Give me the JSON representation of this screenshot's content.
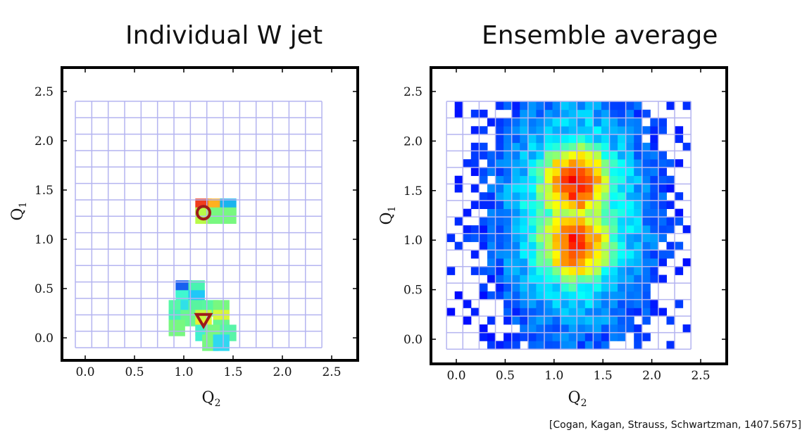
{
  "citation": "[Cogan, Kagan, Strauss, Schwartzman, 1407.5675]",
  "chart_data": [
    {
      "type": "heatmap",
      "title": "Individual W jet",
      "xlabel": "Q",
      "xlabel_sub": "2",
      "ylabel": "Q",
      "ylabel_sub": "1",
      "xlim": [
        -0.25,
        2.75
      ],
      "ylim": [
        -0.25,
        2.75
      ],
      "xticks": [
        "0.0",
        "0.5",
        "1.0",
        "1.5",
        "2.0",
        "2.5"
      ],
      "yticks": [
        "0.0",
        "0.5",
        "1.0",
        "1.5",
        "2.0",
        "2.5"
      ],
      "grid_range": [
        -0.1,
        2.4
      ],
      "cell_size": 0.1667,
      "cells": [
        {
          "x": 1.2,
          "y": 1.33,
          "color": "#f03c1e"
        },
        {
          "x": 1.33,
          "y": 1.33,
          "color": "#ffb020"
        },
        {
          "x": 1.45,
          "y": 1.33,
          "color": "#18b4ee"
        },
        {
          "x": 1.2,
          "y": 1.24,
          "color": "#b8fa48"
        },
        {
          "x": 1.33,
          "y": 1.24,
          "color": "#78f880"
        },
        {
          "x": 1.45,
          "y": 1.24,
          "color": "#78f880"
        },
        {
          "x": 1.0,
          "y": 0.5,
          "color": "#1860f0"
        },
        {
          "x": 1.13,
          "y": 0.5,
          "color": "#48f4b0"
        },
        {
          "x": 1.0,
          "y": 0.4,
          "color": "#40f8d0"
        },
        {
          "x": 1.13,
          "y": 0.4,
          "color": "#20c8f8"
        },
        {
          "x": 0.93,
          "y": 0.3,
          "color": "#58f8a8"
        },
        {
          "x": 1.05,
          "y": 0.3,
          "color": "#30e0e8"
        },
        {
          "x": 1.13,
          "y": 0.3,
          "color": "#58f4a0"
        },
        {
          "x": 0.93,
          "y": 0.2,
          "color": "#48f4b8"
        },
        {
          "x": 1.05,
          "y": 0.2,
          "color": "#68f890"
        },
        {
          "x": 0.93,
          "y": 0.1,
          "color": "#78f880"
        },
        {
          "x": 1.27,
          "y": 0.3,
          "color": "#58f8a0"
        },
        {
          "x": 1.38,
          "y": 0.3,
          "color": "#78f880"
        },
        {
          "x": 1.2,
          "y": 0.2,
          "color": "#c8fa40"
        },
        {
          "x": 1.38,
          "y": 0.2,
          "color": "#d8f838"
        },
        {
          "x": 1.2,
          "y": 0.1,
          "color": "#e8f030"
        },
        {
          "x": 1.38,
          "y": 0.1,
          "color": "#68f890"
        },
        {
          "x": 1.2,
          "y": 0.05,
          "color": "#40f0d0"
        },
        {
          "x": 1.3,
          "y": 0.05,
          "color": "#78f880"
        },
        {
          "x": 1.45,
          "y": 0.05,
          "color": "#58f4a8"
        },
        {
          "x": 1.27,
          "y": -0.05,
          "color": "#78f880"
        },
        {
          "x": 1.38,
          "y": -0.05,
          "color": "#30d8f0"
        }
      ],
      "markers": [
        {
          "shape": "circle",
          "x": 1.2,
          "y": 1.27,
          "color": "#9e1a1a"
        },
        {
          "shape": "triangle-down",
          "x": 1.2,
          "y": 0.18,
          "color": "#9e1a1a"
        }
      ]
    },
    {
      "type": "heatmap",
      "title": "Ensemble average",
      "xlabel": "Q",
      "xlabel_sub": "2",
      "ylabel": "Q",
      "ylabel_sub": "1",
      "xlim": [
        -0.25,
        2.75
      ],
      "ylim": [
        -0.25,
        2.75
      ],
      "xticks": [
        "0.0",
        "0.5",
        "1.0",
        "1.5",
        "2.0",
        "2.5"
      ],
      "yticks": [
        "0.0",
        "0.5",
        "1.0",
        "1.5",
        "2.0",
        "2.5"
      ],
      "grid_range": [
        -0.1,
        2.4
      ],
      "cell_size": 0.1667,
      "center_peaks": [
        {
          "x": 1.22,
          "y": 1.57,
          "intensity": 1.0
        },
        {
          "x": 1.22,
          "y": 0.97,
          "intensity": 0.98
        }
      ],
      "spread": {
        "sx": 0.32,
        "sy": 0.62,
        "cutoff": 0.04
      }
    }
  ]
}
